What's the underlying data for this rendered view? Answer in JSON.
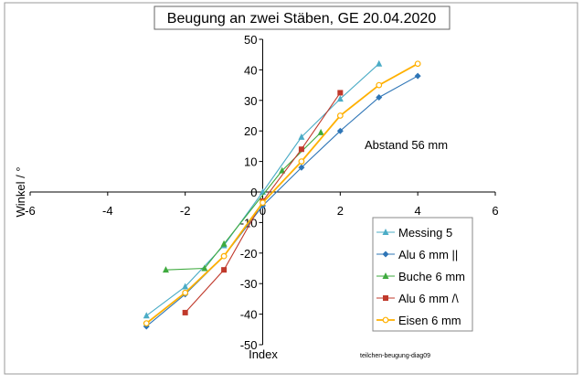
{
  "chart_data": {
    "type": "line",
    "title": "Beugung an zwei Stäben, GE  20.04.2020",
    "xlabel": "Index",
    "ylabel": "Winkel / °",
    "xlim": [
      -6,
      6
    ],
    "ylim": [
      -50,
      50
    ],
    "x_ticks": [
      -6,
      -4,
      -2,
      0,
      2,
      4,
      6
    ],
    "y_ticks": [
      -50,
      -40,
      -30,
      -20,
      -10,
      0,
      10,
      20,
      30,
      40,
      50
    ],
    "grid": false,
    "legend_position": "bottom-right",
    "annotations": {
      "note": "Abstand 56 mm",
      "source": "teilchen-beugung-diag09"
    },
    "series": [
      {
        "name": "Messing 5",
        "color": "#4BACC6",
        "marker": "triangle",
        "points": [
          [
            -3,
            -40.5
          ],
          [
            -2,
            -31
          ],
          [
            -1,
            -17.5
          ],
          [
            0,
            0
          ],
          [
            1,
            18
          ],
          [
            2,
            30.5
          ],
          [
            3,
            42
          ]
        ]
      },
      {
        "name": "Alu 6 mm ||",
        "color": "#2E75B6",
        "marker": "diamond",
        "points": [
          [
            -3,
            -44
          ],
          [
            -2,
            -33.5
          ],
          [
            -1,
            -21
          ],
          [
            0,
            -4.5
          ],
          [
            1,
            8
          ],
          [
            2,
            20
          ],
          [
            3,
            31
          ],
          [
            4,
            38
          ]
        ]
      },
      {
        "name": "Buche 6 mm",
        "color": "#3EAA3E",
        "marker": "triangle",
        "points": [
          [
            -2.5,
            -25.5
          ],
          [
            -1.5,
            -25
          ],
          [
            -1,
            -17
          ],
          [
            0.5,
            7
          ],
          [
            1.5,
            19.5
          ]
        ]
      },
      {
        "name": "Alu 6 mm /\\",
        "color": "#C0392B",
        "marker": "square",
        "points": [
          [
            -2,
            -39.5
          ],
          [
            -1,
            -25.5
          ],
          [
            0,
            -3
          ],
          [
            1,
            14
          ],
          [
            2,
            32.5
          ]
        ]
      },
      {
        "name": "Eisen 6 mm",
        "color": "#FFB000",
        "marker": "circle",
        "points": [
          [
            -3,
            -43
          ],
          [
            -2,
            -33
          ],
          [
            -1,
            -21
          ],
          [
            0,
            -3.5
          ],
          [
            1,
            10
          ],
          [
            2,
            25
          ],
          [
            3,
            35
          ],
          [
            4,
            42
          ]
        ]
      }
    ]
  }
}
